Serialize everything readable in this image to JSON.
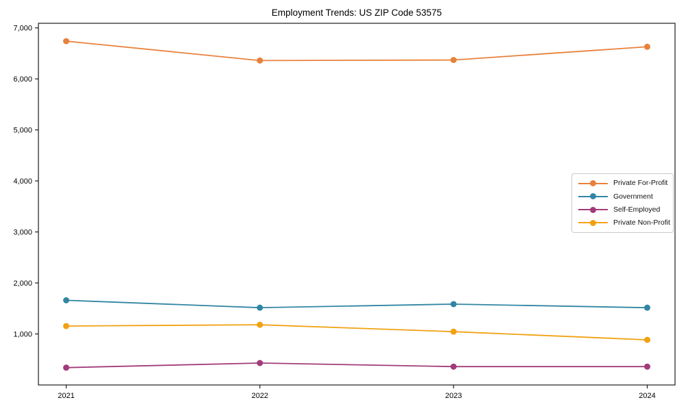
{
  "figure": {
    "background": "#ffffff",
    "axis_color": "#1a1a1a",
    "tick_label_color": "#000000"
  },
  "chart_data": {
    "type": "line",
    "title": "Employment Trends: US ZIP Code 53575",
    "xlabel": "",
    "ylabel": "",
    "x_categories": [
      "2021",
      "2022",
      "2023",
      "2024"
    ],
    "series": [
      {
        "name": "Private For-Profit",
        "color": "#e8813c",
        "values": [
          6740,
          6360,
          6370,
          6630
        ]
      },
      {
        "name": "Government",
        "color": "#3186a3",
        "values": [
          1660,
          1515,
          1585,
          1515
        ]
      },
      {
        "name": "Self-Employed",
        "color": "#a33b7a",
        "values": [
          340,
          430,
          360,
          360
        ]
      },
      {
        "name": "Private Non-Profit",
        "color": "#f1a112",
        "values": [
          1155,
          1180,
          1045,
          885
        ]
      }
    ],
    "ylim": [
      0,
      7090
    ],
    "yticks": [
      {
        "value": 1000,
        "label": "1,000"
      },
      {
        "value": 2000,
        "label": "2,000"
      },
      {
        "value": 3000,
        "label": "3,000"
      },
      {
        "value": 4000,
        "label": "4,000"
      },
      {
        "value": 5000,
        "label": "5,000"
      },
      {
        "value": 6000,
        "label": "6,000"
      },
      {
        "value": 7000,
        "label": "7,000"
      }
    ],
    "grid": false,
    "marker": "circle",
    "legend_position": "center-right"
  }
}
